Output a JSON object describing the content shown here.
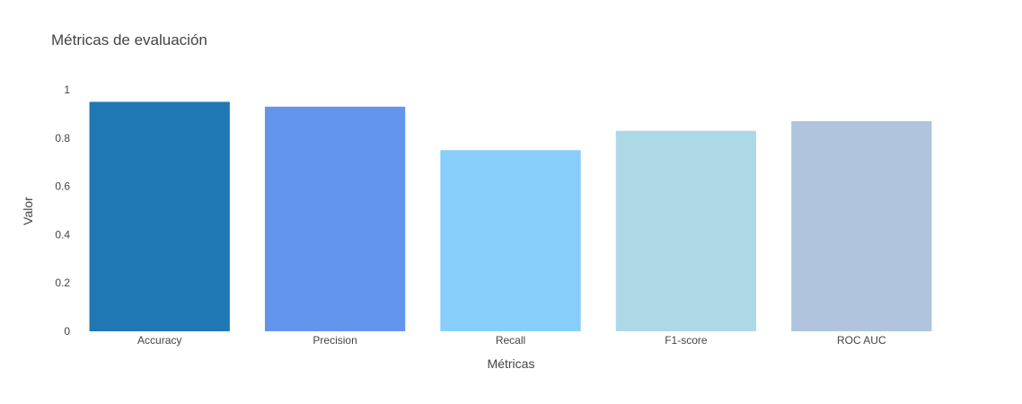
{
  "chart_data": {
    "type": "bar",
    "title": "Métricas de evaluación",
    "xlabel": "Métricas",
    "ylabel": "Valor",
    "categories": [
      "Accuracy",
      "Precision",
      "Recall",
      "F1-score",
      "ROC AUC"
    ],
    "values": [
      0.95,
      0.93,
      0.75,
      0.83,
      0.87
    ],
    "colors": [
      "#1f77b4",
      "#6495ed",
      "#87cefa",
      "#add8e6",
      "#b0c4de"
    ],
    "ylim": [
      0,
      1.0
    ],
    "yticks": [
      0,
      0.2,
      0.4,
      0.6,
      0.8,
      1
    ],
    "ytick_labels": [
      "0",
      "0.2",
      "0.4",
      "0.6",
      "0.8",
      "1"
    ],
    "grid": false,
    "legend": false
  }
}
